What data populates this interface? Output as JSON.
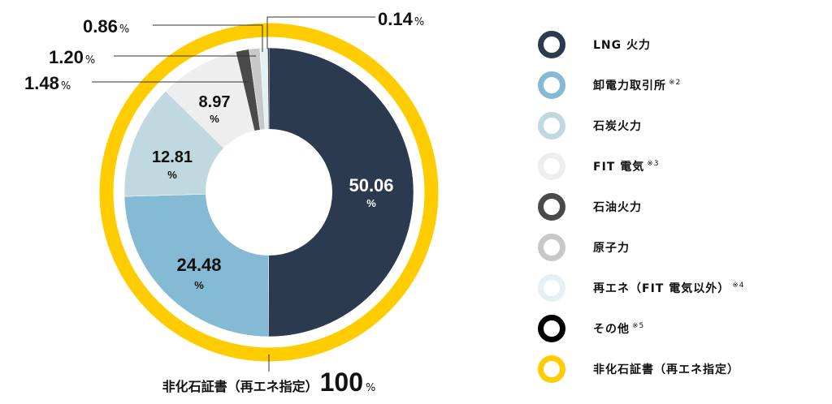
{
  "chart_data": {
    "type": "pie",
    "style": "donut",
    "unit": "%",
    "slices": [
      {
        "name": "LNG火力",
        "value": 50.06,
        "label": "50.06",
        "color": "#2b3a4f"
      },
      {
        "name": "卸電力取引所",
        "value": 24.48,
        "label": "24.48",
        "color": "#84bad3"
      },
      {
        "name": "石炭火力",
        "value": 12.81,
        "label": "12.81",
        "color": "#c0d8df"
      },
      {
        "name": "FIT電気",
        "value": 8.97,
        "label": "8.97",
        "color": "#eeeeee"
      },
      {
        "name": "石油火力",
        "value": 1.48,
        "label": "1.48",
        "color": "#4a4a4a"
      },
      {
        "name": "原子力",
        "value": 1.2,
        "label": "1.20",
        "color": "#c8c8c8"
      },
      {
        "name": "再エネ(FIT電気以外)",
        "value": 0.86,
        "label": "0.86",
        "color": "#e3f1f4"
      },
      {
        "name": "その他",
        "value": 0.14,
        "label": "0.14",
        "color": "#000000"
      }
    ],
    "outer_ring": {
      "name": "非化石証書(再エネ指定)",
      "value": 100,
      "label": "100",
      "color": "#ffcc00"
    },
    "percent_sign": "%",
    "bottom_label": "非化石証書（再エネ指定）"
  },
  "legend": [
    {
      "text": "LNG 火力",
      "note": "",
      "color": "#2b3a4f"
    },
    {
      "text": "卸電力取引所",
      "note": "※2",
      "color": "#84bad3"
    },
    {
      "text": "石炭火力",
      "note": "",
      "color": "#c0d8df"
    },
    {
      "text": "FIT 電気",
      "note": "※3",
      "color": "#eeeeee"
    },
    {
      "text": "石油火力",
      "note": "",
      "color": "#4a4a4a"
    },
    {
      "text": "原子力",
      "note": "",
      "color": "#c8c8c8"
    },
    {
      "text": "再エネ（FIT 電気以外）",
      "note": "※4",
      "color": "#e3f1f4"
    },
    {
      "text": "その他",
      "note": "※5",
      "color": "#000000"
    },
    {
      "text": "非化石証書（再エネ指定）",
      "note": "",
      "color": "#ffcc00"
    }
  ]
}
